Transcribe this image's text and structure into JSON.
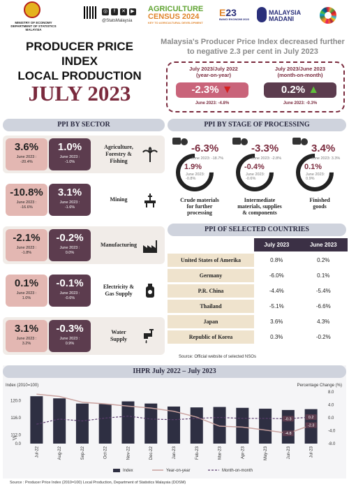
{
  "header": {
    "ministry": "MINISTRY OF ECONOMY\nDEPARTMENT OF STATISTICS MALAYSIA",
    "handle": "@StatsMalaysia",
    "agri_line1": "AGRICULTURE",
    "agri_line2": "CENSUS 2024",
    "agri_sub": "KEY TO AGRICULTURAL DEVELOPMENT",
    "banci": "23",
    "banci_sub": "BANCI EKONOMI 2023",
    "madani": "MALAYSIA\nMADANI"
  },
  "title": {
    "line1": "PRODUCER PRICE INDEX",
    "line2": "LOCAL PRODUCTION",
    "period": "JULY 2023"
  },
  "headline": "Malaysia's Producer Price Index decreased further to negative 2.3 per cent in July 2023",
  "highlights": [
    {
      "label": "July 2023/July 2022\n(year-on-year)",
      "value": "-2.3%",
      "sub": "June 2023: -4.8%",
      "direction": "down",
      "color": "#c9647a"
    },
    {
      "label": "July 2023/June 2023\n(month-on-month)",
      "value": "0.2%",
      "sub": "June 2023: -0.3%",
      "direction": "up",
      "color": "#5c3c4e"
    }
  ],
  "sections": {
    "sector": "PPI BY SECTOR",
    "stage": "PPI BY STAGE OF PROCESSING",
    "countries": "PPI OF SELECTED COUNTRIES",
    "chart": "IHPR July 2022 – July 2023"
  },
  "sectors": [
    {
      "name": "Agriculture,\nForestry &\nFishing",
      "yoy": "3.6%",
      "yoy_sub": "June 2023 :\n-20.4%",
      "mom": "1.0%",
      "mom_sub": "June 2023 :\n-1.0%",
      "icon": "palm-tree-icon"
    },
    {
      "name": "Mining",
      "yoy": "-10.8%",
      "yoy_sub": "June 2023 :\n-16.6%",
      "mom": "3.1%",
      "mom_sub": "June 2023 :\n-1.6%",
      "icon": "oil-rig-icon"
    },
    {
      "name": "Manufacturing",
      "yoy": "-2.1%",
      "yoy_sub": "June 2023 :\n-1.8%",
      "mom": "-0.2%",
      "mom_sub": "June 2023 :\n0.0%",
      "icon": "factory-icon"
    },
    {
      "name": "Electricity &\nGas Supply",
      "yoy": "0.1%",
      "yoy_sub": "June 2023 :\n1.0%",
      "mom": "-0.1%",
      "mom_sub": "June 2023 :\n-0.6%",
      "icon": "gas-tank-icon"
    },
    {
      "name": "Water\nSupply",
      "yoy": "3.1%",
      "yoy_sub": "June 2023 :\n3.2%",
      "mom": "-0.3%",
      "mom_sub": "June 2023 :\n0.9%",
      "icon": "water-tap-icon"
    }
  ],
  "stages": [
    {
      "yoy": "-6.3%",
      "yoy_sub": "June 2023: -18.7%",
      "mom": "1.9%",
      "mom_sub": "June 2023:\n-0.8%",
      "name": "Crude materials\nfor further\nprocessing",
      "icon": "livestock-icon"
    },
    {
      "yoy": "-3.3%",
      "yoy_sub": "June 2023: -2.8%",
      "mom": "-0.4%",
      "mom_sub": "June 2023:\n-0.6%",
      "name": "Intermediate\nmaterials, supplies\n& components",
      "icon": "chip-icon"
    },
    {
      "yoy": "3.4%",
      "yoy_sub": "June 2023: 3.3%",
      "mom": "0.1%",
      "mom_sub": "June 2023:\n0.9%",
      "name": "Finished\ngoods",
      "icon": "goods-icon"
    }
  ],
  "countries": {
    "headers": [
      "July 2023",
      "June 2023"
    ],
    "rows": [
      {
        "name": "United States of Amerika",
        "jul": "0.8%",
        "jun": "0.2%"
      },
      {
        "name": "Germany",
        "jul": "-6.0%",
        "jun": "0.1%"
      },
      {
        "name": "P.R. China",
        "jul": "-4.4%",
        "jun": "-5.4%"
      },
      {
        "name": "Thailand",
        "jul": "-5.1%",
        "jun": "-6.6%"
      },
      {
        "name": "Japan",
        "jul": "3.6%",
        "jun": "4.3%"
      },
      {
        "name": "Republic of Korea",
        "jul": "0.3%",
        "jun": "-0.2%"
      }
    ],
    "source": "Source: Official website of selected NSOs"
  },
  "chart_data": {
    "type": "bar",
    "title": "IHPR July 2022 – July 2023",
    "ylabel": "Index (2010=100)",
    "y2label": "Percentage Change (%)",
    "categories": [
      "Jul-22",
      "Aug-22",
      "Sep-22",
      "Oct-22",
      "Nov-22",
      "Dec-22",
      "Jan-23",
      "Feb-23",
      "Mar-23",
      "Apr-23",
      "May-23",
      "Jun-23",
      "Jul-23"
    ],
    "left_ticks": [
      "0.0",
      "112.0",
      "116.0",
      "120.0"
    ],
    "right_ticks": [
      "8.0",
      "4.0",
      "0.0",
      "-4.0",
      "-8.0"
    ],
    "series": [
      {
        "name": "Index",
        "axis": "left",
        "values": [
          121.0,
          120.5,
          119.3,
          119.2,
          119.8,
          119.3,
          118.6,
          118.4,
          118.5,
          118.3,
          118.1,
          117.8,
          118.0
        ]
      },
      {
        "name": "Year-on-year",
        "axis": "right",
        "values": [
          7.3,
          6.6,
          4.8,
          4.3,
          3.6,
          3.0,
          2.0,
          0.2,
          -2.6,
          -2.9,
          -3.8,
          -4.8,
          -2.3
        ]
      },
      {
        "name": "Month-on-month",
        "axis": "right",
        "values": [
          -2.0,
          -0.4,
          -1.0,
          -0.1,
          0.5,
          -0.4,
          -0.6,
          -0.2,
          0.1,
          -0.2,
          -0.2,
          -0.3,
          0.2
        ]
      }
    ],
    "data_labels": [
      "-0.3",
      "0.2",
      "-4.8",
      "-2.3"
    ],
    "colors": {
      "bar": "#2e2f42",
      "yoy": "#c9a19e",
      "mom": "#5c3c6e"
    },
    "legend_position": "bottom"
  },
  "source": "Source : Producer Price Index (2010=100) Local Production, Department of Statistics Malaysia (DOSM)"
}
